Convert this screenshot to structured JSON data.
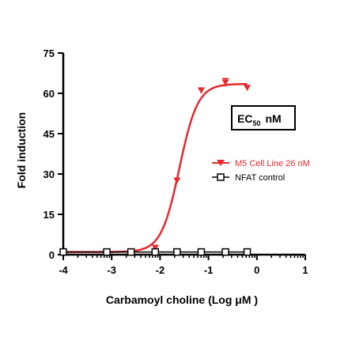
{
  "chart_data": {
    "type": "scatter",
    "xlabel": "Carbamoyl choline (Log μM )",
    "ylabel": "Fold induction",
    "xlim": [
      -4,
      1
    ],
    "ylim": [
      0,
      75
    ],
    "x_ticks": [
      "-4",
      "-3",
      "-2",
      "-1",
      "0",
      "1"
    ],
    "y_ticks": [
      "0",
      "15",
      "30",
      "45",
      "60",
      "75"
    ],
    "annotation": {
      "text": "EC",
      "sub": "50",
      "suffix": "nM"
    },
    "series": [
      {
        "name": "M5 Cell  Line 26 nM",
        "color": "#e8282d",
        "marker": "triangle-down",
        "fit": {
          "bottom": 1.0,
          "top": 63.5,
          "logEC50": -1.6,
          "hill": 2.3
        },
        "points": [
          {
            "x": -4.0,
            "y": 1.0
          },
          {
            "x": -3.1,
            "y": 1.0
          },
          {
            "x": -2.6,
            "y": 1.0
          },
          {
            "x": -2.1,
            "y": 2.5
          },
          {
            "x": -1.65,
            "y": 27.5
          },
          {
            "x": -1.15,
            "y": 61.0,
            "err": 1.0
          },
          {
            "x": -0.65,
            "y": 64.0,
            "err": 1.5
          },
          {
            "x": -0.2,
            "y": 62.0
          }
        ]
      },
      {
        "name": "NFAT control",
        "color": "#000000",
        "marker": "square-open",
        "points": [
          {
            "x": -4.0,
            "y": 1.0
          },
          {
            "x": -3.1,
            "y": 1.0
          },
          {
            "x": -2.6,
            "y": 1.0
          },
          {
            "x": -2.1,
            "y": 1.0
          },
          {
            "x": -1.65,
            "y": 1.0
          },
          {
            "x": -1.15,
            "y": 1.0
          },
          {
            "x": -0.65,
            "y": 1.0
          },
          {
            "x": -0.2,
            "y": 1.0
          }
        ]
      }
    ]
  }
}
